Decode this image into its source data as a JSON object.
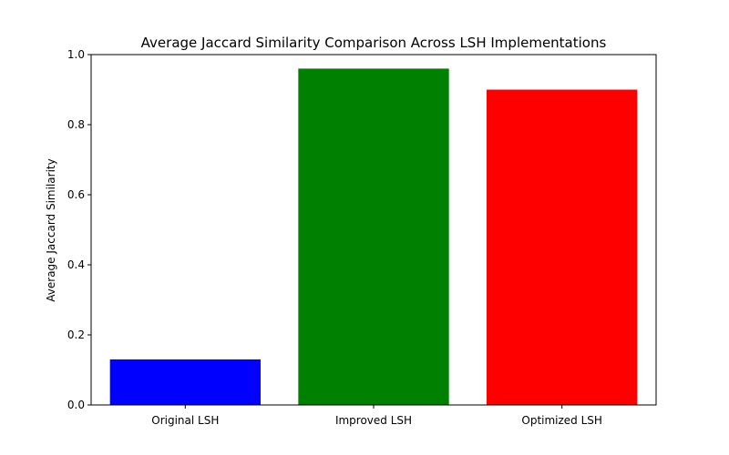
{
  "chart_data": {
    "type": "bar",
    "title": "Average Jaccard Similarity Comparison Across LSH Implementations",
    "xlabel": "",
    "ylabel": "Average Jaccard Similarity",
    "categories": [
      "Original LSH",
      "Improved LSH",
      "Optimized LSH"
    ],
    "values": [
      0.13,
      0.96,
      0.9
    ],
    "colors": [
      "#0000ff",
      "#008000",
      "#ff0000"
    ],
    "ylim": [
      0,
      1.0
    ],
    "yticks": [
      0.0,
      0.2,
      0.4,
      0.6,
      0.8,
      1.0
    ],
    "ytick_labels": [
      "0.0",
      "0.2",
      "0.4",
      "0.6",
      "0.8",
      "1.0"
    ],
    "grid": false,
    "legend": "none"
  }
}
